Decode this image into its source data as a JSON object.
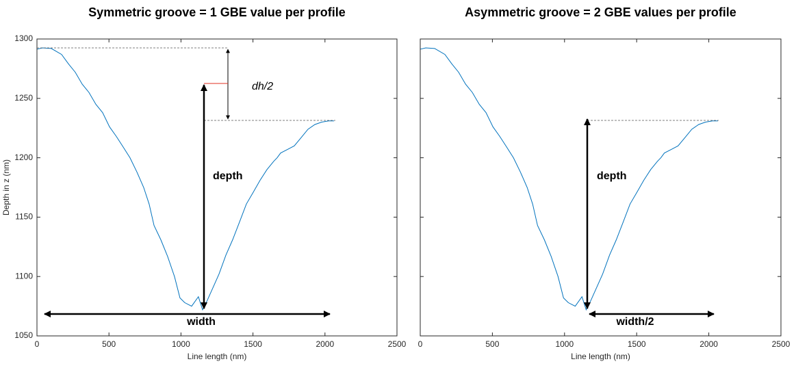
{
  "chart_data": [
    {
      "type": "line",
      "title": "Symmetric groove = 1 GBE value per profile",
      "xlabel": "Line length (nm)",
      "ylabel": "Depth in z (nm)",
      "x": [
        0,
        38,
        100,
        171,
        219,
        266,
        314,
        361,
        409,
        456,
        504,
        551,
        599,
        646,
        694,
        741,
        779,
        813,
        860,
        907,
        955,
        993,
        1026,
        1074,
        1121,
        1150,
        1183,
        1231,
        1264,
        1312,
        1359,
        1407,
        1454,
        1502,
        1549,
        1597,
        1644,
        1668,
        1692,
        1740,
        1787,
        1835,
        1882,
        1930,
        1977,
        2025,
        2063
      ],
      "values": [
        1291.4,
        1292.5,
        1292,
        1287,
        1279,
        1272,
        1262,
        1255,
        1245,
        1238,
        1226,
        1218,
        1209,
        1200,
        1188,
        1175,
        1161,
        1143,
        1131,
        1117,
        1100,
        1082,
        1078,
        1075,
        1083,
        1072,
        1080,
        1093,
        1102,
        1118,
        1131,
        1146,
        1161,
        1171,
        1181,
        1190,
        1197,
        1200,
        1204,
        1207,
        1210,
        1217,
        1224,
        1228,
        1230,
        1231,
        1231
      ],
      "color": "#0072bd",
      "xlim": [
        0,
        2500
      ],
      "xticks": [
        0,
        500,
        1000,
        1500,
        2000,
        2500
      ],
      "ylim": [
        1050,
        1300
      ],
      "yticks": [
        1050,
        1100,
        1150,
        1200,
        1250,
        1300
      ],
      "ytick_labels": true,
      "annotations": [
        "dh/2",
        "depth",
        "width"
      ]
    },
    {
      "type": "line",
      "title": "Asymmetric groove = 2 GBE values per profile",
      "xlabel": "Line length (nm)",
      "x": [
        0,
        38,
        100,
        171,
        219,
        266,
        314,
        361,
        409,
        456,
        504,
        551,
        599,
        646,
        694,
        741,
        779,
        813,
        860,
        907,
        955,
        993,
        1026,
        1074,
        1121,
        1150,
        1183,
        1231,
        1264,
        1312,
        1359,
        1407,
        1454,
        1502,
        1549,
        1597,
        1644,
        1668,
        1692,
        1740,
        1787,
        1835,
        1882,
        1930,
        1977,
        2025,
        2063
      ],
      "values": [
        1291.4,
        1292.5,
        1292,
        1287,
        1279,
        1272,
        1262,
        1255,
        1245,
        1238,
        1226,
        1218,
        1209,
        1200,
        1188,
        1175,
        1161,
        1143,
        1131,
        1117,
        1100,
        1082,
        1078,
        1075,
        1083,
        1072,
        1080,
        1093,
        1102,
        1118,
        1131,
        1146,
        1161,
        1171,
        1181,
        1190,
        1197,
        1200,
        1204,
        1207,
        1210,
        1217,
        1224,
        1228,
        1230,
        1231,
        1231
      ],
      "color": "#0072bd",
      "xlim": [
        0,
        2500
      ],
      "xticks": [
        0,
        500,
        1000,
        1500,
        2000,
        2500
      ],
      "ylim": [
        1050,
        1300
      ],
      "yticks": [
        1050,
        1100,
        1150,
        1200,
        1250,
        1300
      ],
      "ytick_labels": false,
      "annotations": [
        "depth",
        "width/2"
      ]
    }
  ]
}
